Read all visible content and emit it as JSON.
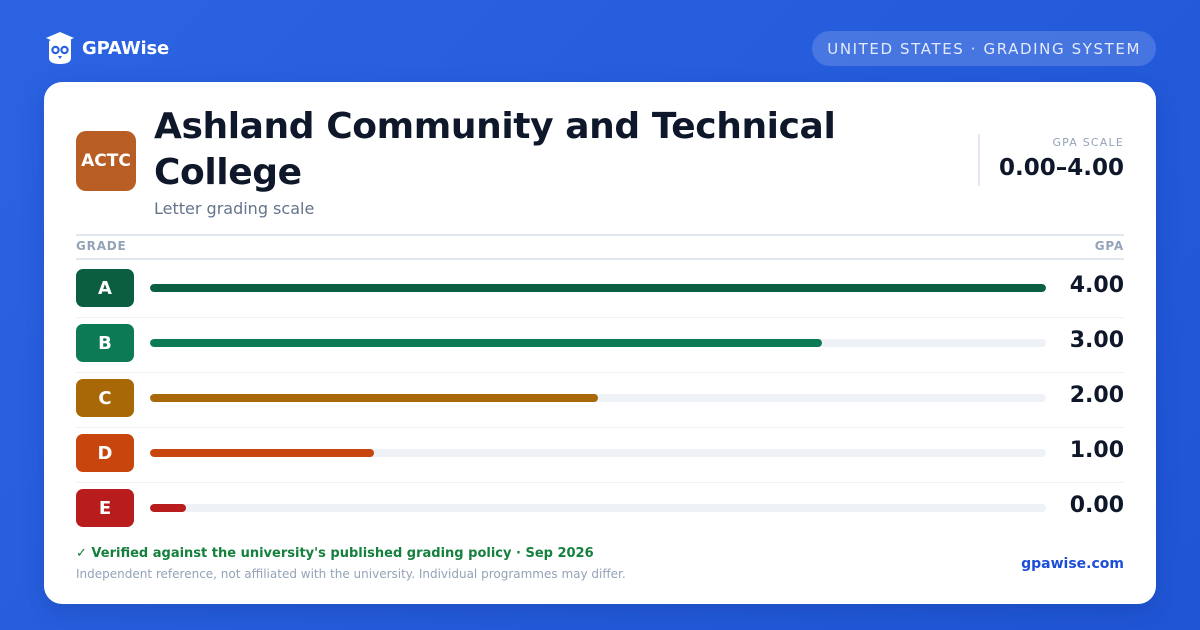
{
  "brand": {
    "name": "GPAWise",
    "icon": "owl-logo-icon"
  },
  "region_pill": "UNITED STATES · GRADING SYSTEM",
  "university": {
    "badge": "ACTC",
    "badge_color": "#b85e24",
    "name": "Ashland Community and Technical College",
    "subtitle": "Letter grading scale"
  },
  "gpa_scale": {
    "label": "GPA SCALE",
    "value": "0.00–4.00"
  },
  "table": {
    "grade_header": "GRADE",
    "gpa_header": "GPA",
    "rows": [
      {
        "grade": "A",
        "gpa": "4.00",
        "fill_fraction": 1.0,
        "color": "#0b5e3f"
      },
      {
        "grade": "B",
        "gpa": "3.00",
        "fill_fraction": 0.75,
        "color": "#0d7a56"
      },
      {
        "grade": "C",
        "gpa": "2.00",
        "fill_fraction": 0.5,
        "color": "#a86808"
      },
      {
        "grade": "D",
        "gpa": "1.00",
        "fill_fraction": 0.25,
        "color": "#c9450e"
      },
      {
        "grade": "E",
        "gpa": "0.00",
        "fill_fraction": 0.04,
        "color": "#b91c1c"
      }
    ]
  },
  "footer": {
    "verified": "✓ Verified against the university's published grading policy · Sep 2026",
    "disclaimer": "Independent reference, not affiliated with the university. Individual programmes may differ.",
    "site": "gpawise.com"
  }
}
